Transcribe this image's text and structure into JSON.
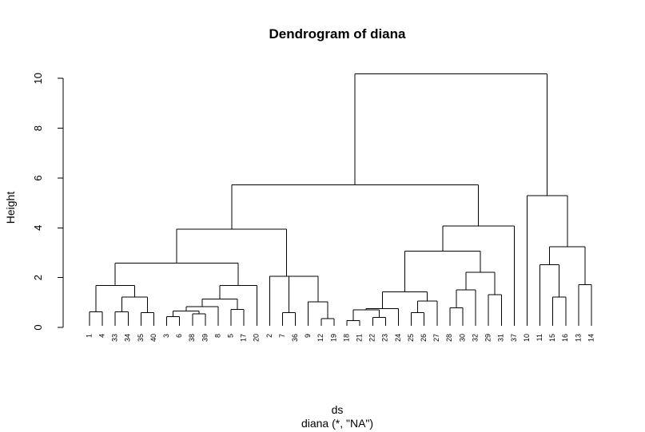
{
  "chart_data": {
    "type": "dendrogram",
    "title": "Dendrogram of diana",
    "xlabel": "ds",
    "sublabel": "diana (*, \"NA\")",
    "ylabel": "Height",
    "ylim": [
      0,
      10.2
    ],
    "yticks": [
      0,
      2,
      4,
      6,
      8,
      10
    ],
    "ytick_labels": [
      "0",
      "2",
      "4",
      "6",
      "8",
      "10"
    ],
    "leaves": [
      "1",
      "4",
      "33",
      "34",
      "35",
      "40",
      "3",
      "6",
      "38",
      "39",
      "8",
      "5",
      "17",
      "20",
      "2",
      "7",
      "36",
      "9",
      "12",
      "19",
      "18",
      "21",
      "22",
      "23",
      "24",
      "25",
      "26",
      "27",
      "28",
      "30",
      "32",
      "29",
      "31",
      "37",
      "10",
      "11",
      "15",
      "16",
      "13",
      "14"
    ],
    "merges": [
      {
        "left": "L0",
        "right": "L1",
        "height": 0.62
      },
      {
        "left": "L2",
        "right": "L3",
        "height": 0.62
      },
      {
        "left": "L4",
        "right": "L5",
        "height": 0.6
      },
      {
        "left": "N1",
        "right": "N2",
        "height": 1.22
      },
      {
        "left": "N0",
        "right": "N3",
        "height": 1.68
      },
      {
        "left": "L6",
        "right": "L7",
        "height": 0.44
      },
      {
        "left": "L8",
        "right": "L9",
        "height": 0.54
      },
      {
        "left": "N5",
        "right": "N6",
        "height": 0.66
      },
      {
        "left": "N7",
        "right": "L10",
        "height": 0.84
      },
      {
        "left": "L11",
        "right": "L12",
        "height": 0.72
      },
      {
        "left": "N8",
        "right": "N9",
        "height": 1.14
      },
      {
        "left": "N10",
        "right": "L13",
        "height": 1.68
      },
      {
        "left": "N4",
        "right": "N11",
        "height": 2.58
      },
      {
        "left": "L15",
        "right": "L16",
        "height": 0.6
      },
      {
        "left": "L18",
        "right": "L19",
        "height": 0.36
      },
      {
        "left": "L17",
        "right": "N14",
        "height": 1.02
      },
      {
        "left": "N13",
        "right": "N15",
        "height": 2.06
      },
      {
        "left": "L14",
        "right": "N16",
        "height": 2.06
      },
      {
        "left": "N12",
        "right": "N17",
        "height": 3.94
      },
      {
        "left": "L20",
        "right": "L21",
        "height": 0.28
      },
      {
        "left": "L22",
        "right": "L23",
        "height": 0.4
      },
      {
        "left": "N19",
        "right": "N20",
        "height": 0.7
      },
      {
        "left": "N21",
        "right": "L24",
        "height": 0.76
      },
      {
        "left": "L25",
        "right": "L26",
        "height": 0.6
      },
      {
        "left": "N23",
        "right": "L27",
        "height": 1.06
      },
      {
        "left": "N22",
        "right": "N24",
        "height": 1.42
      },
      {
        "left": "L28",
        "right": "L29",
        "height": 0.78
      },
      {
        "left": "N26",
        "right": "L30",
        "height": 1.5
      },
      {
        "left": "L31",
        "right": "L32",
        "height": 1.32
      },
      {
        "left": "N27",
        "right": "N28",
        "height": 2.22
      },
      {
        "left": "N25",
        "right": "N29",
        "height": 3.06
      },
      {
        "left": "N30",
        "right": "L33",
        "height": 4.08
      },
      {
        "left": "N18",
        "right": "N31",
        "height": 5.72
      },
      {
        "left": "L36",
        "right": "L37",
        "height": 1.22
      },
      {
        "left": "L35",
        "right": "N33",
        "height": 2.52
      },
      {
        "left": "L38",
        "right": "L39",
        "height": 1.72
      },
      {
        "left": "N34",
        "right": "N35",
        "height": 3.24
      },
      {
        "left": "L34",
        "right": "N36",
        "height": 5.3
      },
      {
        "left": "N32",
        "right": "N37",
        "height": 10.18
      }
    ]
  }
}
